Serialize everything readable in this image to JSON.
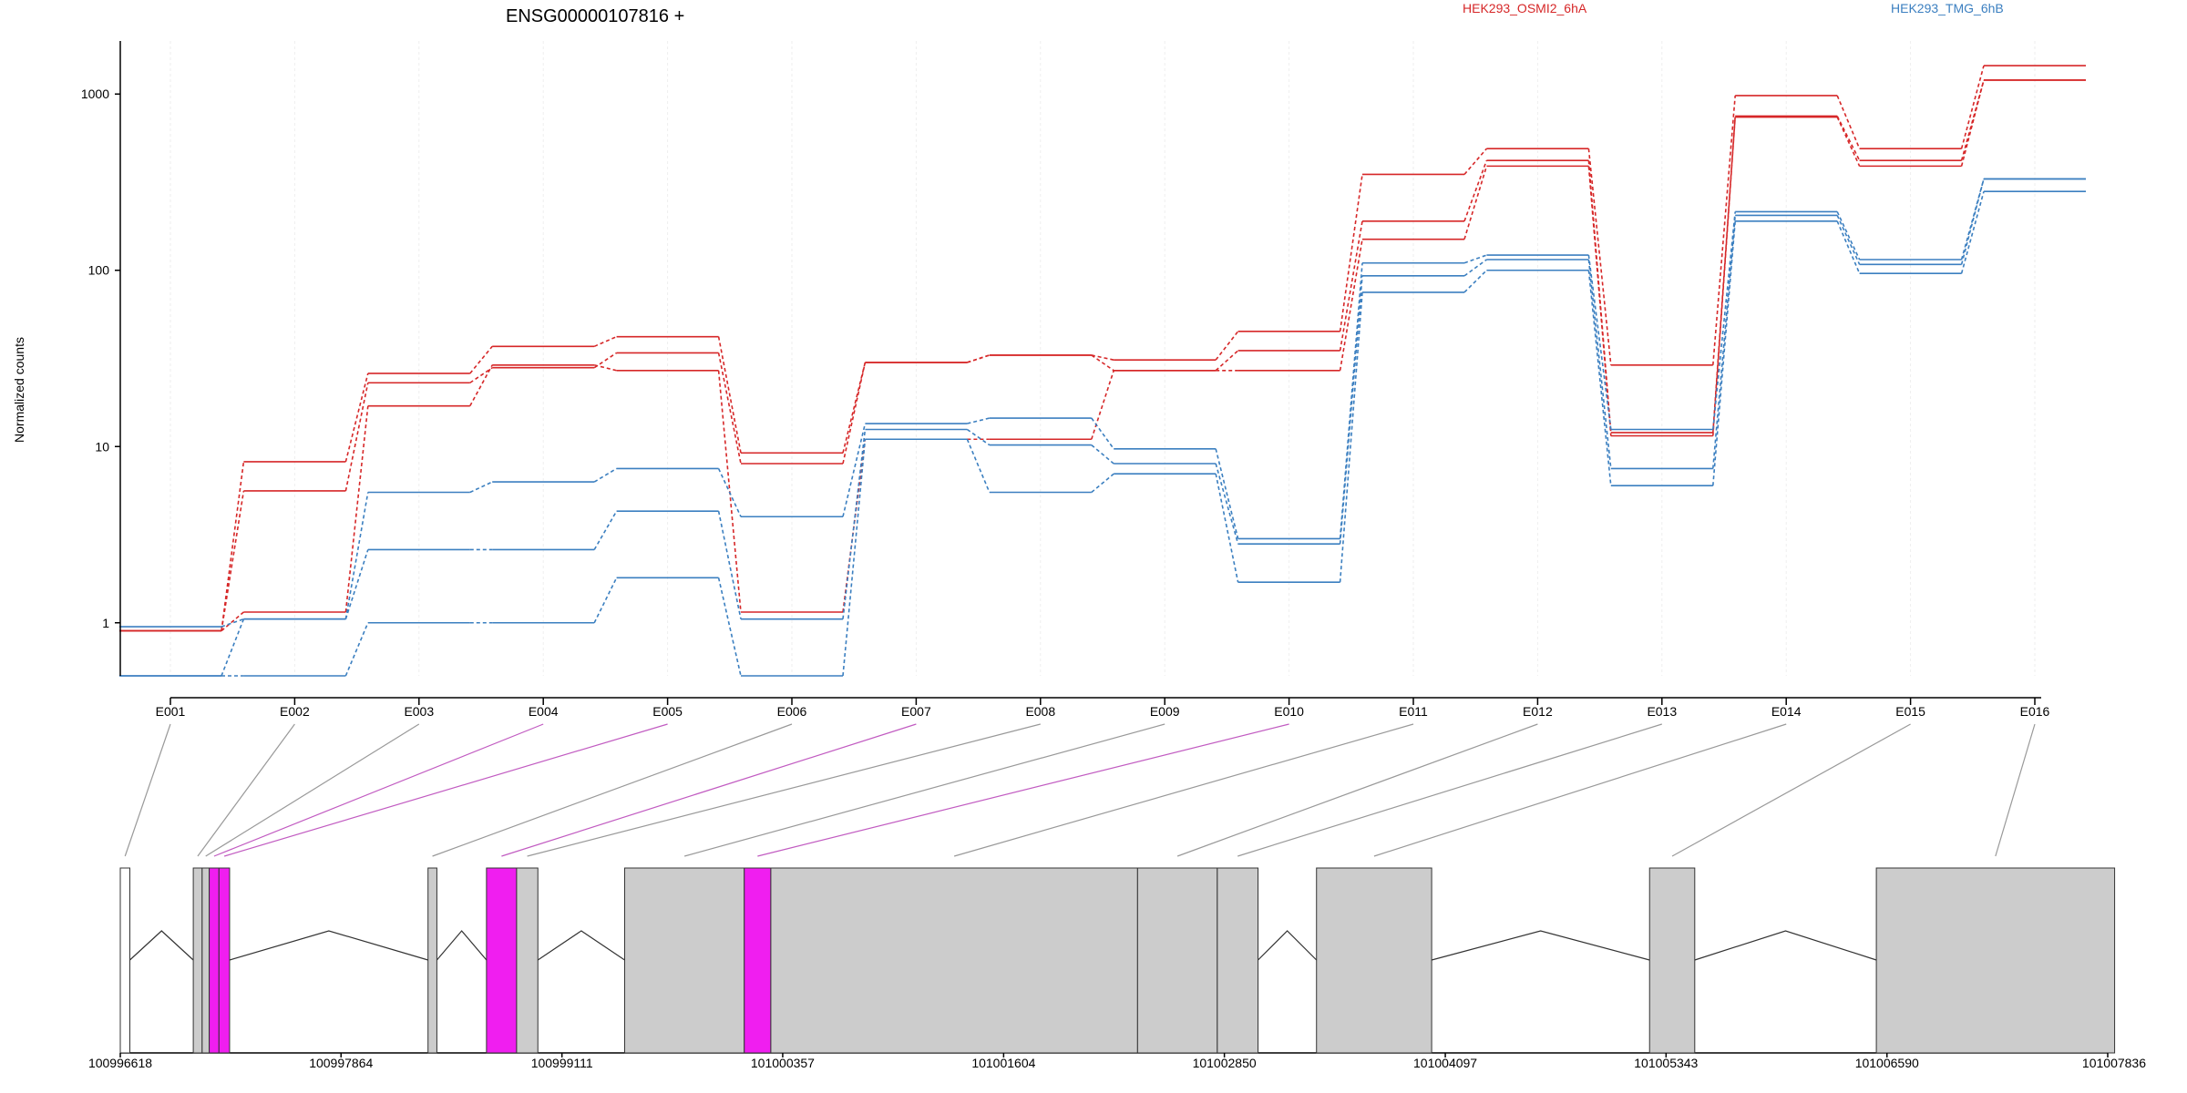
{
  "chart_data": {
    "type": "line",
    "title": "ENSG00000107816 +",
    "ylabel": "Normalized counts",
    "yscale": "log",
    "ylim": [
      0.5,
      2000
    ],
    "yticks": [
      {
        "value": 1,
        "label": "1"
      },
      {
        "value": 10,
        "label": "10"
      },
      {
        "value": 100,
        "label": "100"
      },
      {
        "value": 1000,
        "label": "1000"
      }
    ],
    "categories": [
      "E001",
      "E002",
      "E003",
      "E004",
      "E005",
      "E006",
      "E007",
      "E008",
      "E009",
      "E010",
      "E011",
      "E012",
      "E013",
      "E014",
      "E015",
      "E016"
    ],
    "legend": [
      {
        "label": "HEK293_OSMI2_6hA",
        "color": "#d62728"
      },
      {
        "label": "HEK293_TMG_6hB",
        "color": "#3b7fc0"
      }
    ],
    "series": [
      {
        "group": 0,
        "values": [
          0.9,
          8.2,
          26,
          37,
          42,
          9.2,
          30,
          33,
          31,
          45,
          350,
          490,
          29,
          980,
          490,
          1450
        ]
      },
      {
        "group": 0,
        "values": [
          0.9,
          5.6,
          23,
          28,
          34,
          8.0,
          30,
          33,
          27,
          35,
          190,
          420,
          12,
          750,
          420,
          1200
        ]
      },
      {
        "group": 0,
        "values": [
          0.9,
          1.15,
          17,
          29,
          27,
          1.15,
          11,
          11,
          27,
          27,
          150,
          390,
          11.5,
          740,
          390,
          1200
        ]
      },
      {
        "group": 1,
        "values": [
          0.95,
          1.05,
          5.5,
          6.3,
          7.5,
          4.0,
          13.5,
          14.5,
          9.7,
          3.0,
          110,
          122,
          12.5,
          215,
          115,
          330
        ]
      },
      {
        "group": 1,
        "values": [
          0.5,
          1.05,
          2.6,
          2.6,
          4.3,
          1.05,
          12.5,
          10.2,
          8.0,
          2.8,
          93,
          115,
          7.5,
          205,
          108,
          330
        ]
      },
      {
        "group": 1,
        "values": [
          0.5,
          0.5,
          1.0,
          1.0,
          1.8,
          0.5,
          11,
          5.5,
          7.0,
          1.7,
          75,
          100,
          6.0,
          190,
          96,
          280
        ]
      }
    ]
  },
  "gene_model": {
    "ticks": [
      "100996618",
      "100997864",
      "100999111",
      "101000357",
      "101001604",
      "101002850",
      "101004097",
      "101005343",
      "101006590",
      "101007836"
    ],
    "exons": [
      {
        "id": "E001",
        "start": 100996618,
        "end": 100996672,
        "style": "first"
      },
      {
        "id": "E002",
        "start": 100997030,
        "end": 100997080,
        "style": "normal"
      },
      {
        "id": "E003",
        "start": 100997080,
        "end": 100997120,
        "style": "normal"
      },
      {
        "id": "E004",
        "start": 100997120,
        "end": 100997175,
        "style": "highlight"
      },
      {
        "id": "E005",
        "start": 100997175,
        "end": 100997235,
        "style": "highlight"
      },
      {
        "id": "E006",
        "start": 100998355,
        "end": 100998405,
        "style": "normal"
      },
      {
        "id": "E007",
        "start": 100998685,
        "end": 100998855,
        "style": "highlight"
      },
      {
        "id": "E008",
        "start": 100998855,
        "end": 100998975,
        "style": "normal"
      },
      {
        "id": "E009",
        "start": 100999465,
        "end": 101000140,
        "style": "normal"
      },
      {
        "id": "E010",
        "start": 101000140,
        "end": 101000290,
        "style": "highlight"
      },
      {
        "id": "E011",
        "start": 101000290,
        "end": 101002360,
        "style": "normal"
      },
      {
        "id": "E012",
        "start": 101002360,
        "end": 101002810,
        "style": "normal"
      },
      {
        "id": "E013",
        "start": 101002810,
        "end": 101003040,
        "style": "normal"
      },
      {
        "id": "E014",
        "start": 101003370,
        "end": 101004020,
        "style": "normal"
      },
      {
        "id": "E015",
        "start": 101005250,
        "end": 101005505,
        "style": "normal"
      },
      {
        "id": "E016",
        "start": 101006530,
        "end": 101007875,
        "style": "normal"
      }
    ]
  }
}
